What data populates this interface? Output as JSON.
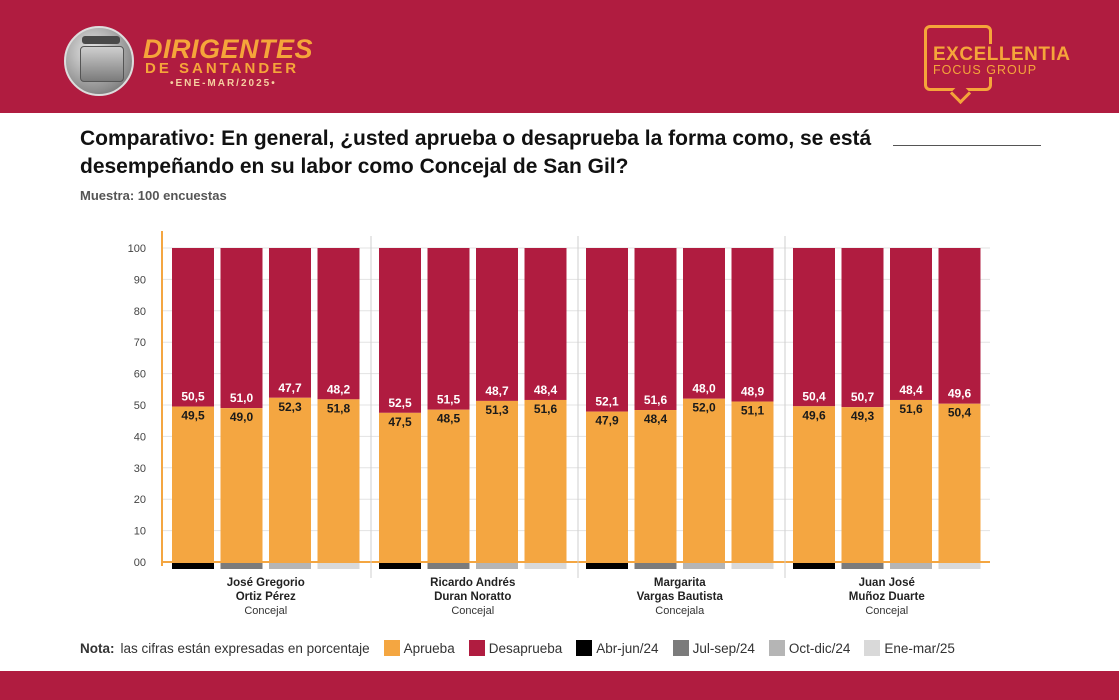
{
  "header": {
    "brand_line1": "DIRIGENTES",
    "brand_line2": "DE SANTANDER",
    "brand_line3": "•ENE-MAR/2025•",
    "partner_name": "EXCELLENTIA",
    "partner_sub": "FOCUS GROUP"
  },
  "title": "Comparativo: En general, ¿usted aprueba o desaprueba la forma como, se está desempeñando en su labor como Concejal de San Gil?",
  "sample": "Muestra: 100 encuestas",
  "legend": {
    "note_label": "Nota:",
    "note_text": "las cifras están expresadas en porcentaje",
    "items": [
      {
        "label": "Aprueba",
        "color": "#f4a641"
      },
      {
        "label": "Desaprueba",
        "color": "#b01c40"
      },
      {
        "label": "Abr-jun/24",
        "color": "#000000"
      },
      {
        "label": "Jul-sep/24",
        "color": "#7b7b7b"
      },
      {
        "label": "Oct-dic/24",
        "color": "#b5b5b5"
      },
      {
        "label": "Ene-mar/25",
        "color": "#d9d9d9"
      }
    ]
  },
  "chart_data": {
    "type": "bar",
    "stacked": true,
    "ylim": [
      0,
      100
    ],
    "yticks": [
      "00",
      "10",
      "20",
      "30",
      "40",
      "50",
      "60",
      "70",
      "80",
      "90",
      "100"
    ],
    "periods": [
      "Abr-jun/24",
      "Jul-sep/24",
      "Oct-dic/24",
      "Ene-mar/25"
    ],
    "period_colors": [
      "#000000",
      "#7b7b7b",
      "#b5b5b5",
      "#d9d9d9"
    ],
    "series_colors": {
      "aprueba": "#f4a641",
      "desaprueba": "#b01c40"
    },
    "groups": [
      {
        "name": [
          "José Gregorio",
          "Ortiz Pérez"
        ],
        "role": "Concejal",
        "aprueba": [
          "49,5",
          "49,0",
          "52,3",
          "51,8"
        ],
        "desaprueba": [
          "50,5",
          "51,0",
          "47,7",
          "48,2"
        ]
      },
      {
        "name": [
          "Ricardo Andrés",
          "Duran Noratto"
        ],
        "role": "Concejal",
        "aprueba": [
          "47,5",
          "48,5",
          "51,3",
          "51,6"
        ],
        "desaprueba": [
          "52,5",
          "51,5",
          "48,7",
          "48,4"
        ]
      },
      {
        "name": [
          "Margarita",
          "Vargas Bautista"
        ],
        "role": "Concejala",
        "aprueba": [
          "47,9",
          "48,4",
          "52,0",
          "51,1"
        ],
        "desaprueba": [
          "52,1",
          "51,6",
          "48,0",
          "48,9"
        ]
      },
      {
        "name": [
          "Juan José",
          "Muñoz Duarte"
        ],
        "role": "Concejal",
        "aprueba": [
          "49,6",
          "49,3",
          "51,6",
          "50,4"
        ],
        "desaprueba": [
          "50,4",
          "50,7",
          "48,4",
          "49,6"
        ]
      }
    ]
  }
}
